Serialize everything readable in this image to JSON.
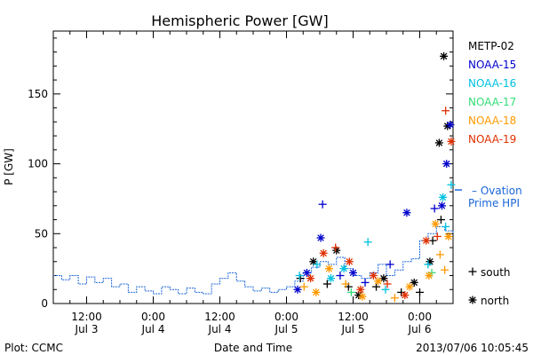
{
  "chart_data": {
    "type": "scatter",
    "title": "Hemispheric Power [GW]",
    "xlabel": "Date and Time",
    "ylabel": "P [GW]",
    "ylim": [
      0,
      195
    ],
    "xlim": [
      "2013-07-03 06:00",
      "2013-07-06 06:00"
    ],
    "x_ticks": [
      {
        "t": "2013-07-03 12:00",
        "top": "12:00",
        "bottom": "Jul 3"
      },
      {
        "t": "2013-07-04 00:00",
        "top": "0:00",
        "bottom": "Jul 4"
      },
      {
        "t": "2013-07-04 12:00",
        "top": "12:00",
        "bottom": "Jul 4"
      },
      {
        "t": "2013-07-05 00:00",
        "top": "0:00",
        "bottom": "Jul 5"
      },
      {
        "t": "2013-07-05 12:00",
        "top": "12:00",
        "bottom": "Jul 5"
      },
      {
        "t": "2013-07-06 00:00",
        "top": "0:00",
        "bottom": "Jul 6"
      }
    ],
    "y_ticks": [
      0,
      50,
      100,
      150
    ],
    "legend_position": "right",
    "series": [
      {
        "name": "METP-02",
        "color": "#000000",
        "points": [
          {
            "t": "2013-07-05 02:30",
            "y": 18,
            "m": "+"
          },
          {
            "t": "2013-07-05 04:50",
            "y": 30,
            "m": "*"
          },
          {
            "t": "2013-07-05 07:20",
            "y": 14,
            "m": "+"
          },
          {
            "t": "2013-07-05 09:00",
            "y": 38,
            "m": "*"
          },
          {
            "t": "2013-07-05 11:10",
            "y": 12,
            "m": "+"
          },
          {
            "t": "2013-07-05 13:00",
            "y": 6,
            "m": "*"
          },
          {
            "t": "2013-07-05 16:10",
            "y": 12,
            "m": "+"
          },
          {
            "t": "2013-07-05 17:30",
            "y": 18,
            "m": "*"
          },
          {
            "t": "2013-07-05 20:40",
            "y": 8,
            "m": "+"
          },
          {
            "t": "2013-07-05 23:00",
            "y": 15,
            "m": "*"
          },
          {
            "t": "2013-07-06 00:00",
            "y": 8,
            "m": "+"
          },
          {
            "t": "2013-07-06 01:50",
            "y": 30,
            "m": "*"
          },
          {
            "t": "2013-07-06 03:30",
            "y": 115,
            "m": "*"
          },
          {
            "t": "2013-07-06 04:20",
            "y": 177,
            "m": "*"
          },
          {
            "t": "2013-07-06 05:00",
            "y": 127,
            "m": "*"
          },
          {
            "t": "2013-07-06 02:20",
            "y": 45,
            "m": "+"
          },
          {
            "t": "2013-07-06 03:50",
            "y": 60,
            "m": "+"
          }
        ]
      },
      {
        "name": "NOAA-15",
        "color": "#0000cc",
        "points": [
          {
            "t": "2013-07-05 02:00",
            "y": 10,
            "m": "*"
          },
          {
            "t": "2013-07-05 03:40",
            "y": 22,
            "m": "*"
          },
          {
            "t": "2013-07-05 06:10",
            "y": 47,
            "m": "*"
          },
          {
            "t": "2013-07-05 06:30",
            "y": 71,
            "m": "+"
          },
          {
            "t": "2013-07-05 09:40",
            "y": 20,
            "m": "+"
          },
          {
            "t": "2013-07-05 12:00",
            "y": 22,
            "m": "*"
          },
          {
            "t": "2013-07-05 14:10",
            "y": 15,
            "m": "+"
          },
          {
            "t": "2013-07-05 18:40",
            "y": 28,
            "m": "+"
          },
          {
            "t": "2013-07-05 21:40",
            "y": 65,
            "m": "*"
          },
          {
            "t": "2013-07-06 02:40",
            "y": 68,
            "m": "+"
          },
          {
            "t": "2013-07-06 04:00",
            "y": 70,
            "m": "*"
          },
          {
            "t": "2013-07-06 04:50",
            "y": 100,
            "m": "*"
          },
          {
            "t": "2013-07-06 05:30",
            "y": 128,
            "m": "*"
          }
        ]
      },
      {
        "name": "NOAA-16",
        "color": "#00c0e0",
        "points": [
          {
            "t": "2013-07-05 02:20",
            "y": 20,
            "m": "+"
          },
          {
            "t": "2013-07-05 05:30",
            "y": 28,
            "m": "+"
          },
          {
            "t": "2013-07-05 08:00",
            "y": 18,
            "m": "*"
          },
          {
            "t": "2013-07-05 10:20",
            "y": 25,
            "m": "*"
          },
          {
            "t": "2013-07-05 14:40",
            "y": 44,
            "m": "+"
          },
          {
            "t": "2013-07-05 17:50",
            "y": 10,
            "m": "+"
          },
          {
            "t": "2013-07-06 01:30",
            "y": 28,
            "m": "+"
          },
          {
            "t": "2013-07-06 04:10",
            "y": 76,
            "m": "*"
          },
          {
            "t": "2013-07-06 04:40",
            "y": 55,
            "m": "+"
          },
          {
            "t": "2013-07-06 05:40",
            "y": 85,
            "m": "+"
          }
        ]
      },
      {
        "name": "NOAA-17",
        "color": "#33dd77",
        "points": [
          {
            "t": "2013-07-05 11:40",
            "y": 8,
            "m": "+"
          },
          {
            "t": "2013-07-06 02:10",
            "y": 22,
            "m": "+"
          }
        ]
      },
      {
        "name": "NOAA-18",
        "color": "#ff9900",
        "points": [
          {
            "t": "2013-07-05 03:10",
            "y": 12,
            "m": "+"
          },
          {
            "t": "2013-07-05 05:20",
            "y": 8,
            "m": "*"
          },
          {
            "t": "2013-07-05 07:40",
            "y": 25,
            "m": "*"
          },
          {
            "t": "2013-07-05 10:40",
            "y": 14,
            "m": "+"
          },
          {
            "t": "2013-07-05 13:40",
            "y": 5,
            "m": "*"
          },
          {
            "t": "2013-07-05 16:30",
            "y": 16,
            "m": "*"
          },
          {
            "t": "2013-07-05 19:30",
            "y": 4,
            "m": "+"
          },
          {
            "t": "2013-07-05 22:10",
            "y": 12,
            "m": "*"
          },
          {
            "t": "2013-07-06 01:40",
            "y": 20,
            "m": "*"
          },
          {
            "t": "2013-07-06 02:50",
            "y": 57,
            "m": "*"
          },
          {
            "t": "2013-07-06 03:40",
            "y": 35,
            "m": "+"
          },
          {
            "t": "2013-07-06 04:30",
            "y": 24,
            "m": "+"
          },
          {
            "t": "2013-07-06 05:10",
            "y": 48,
            "m": "*"
          }
        ]
      },
      {
        "name": "NOAA-19",
        "color": "#e03000",
        "points": [
          {
            "t": "2013-07-05 04:20",
            "y": 18,
            "m": "*"
          },
          {
            "t": "2013-07-05 06:40",
            "y": 36,
            "m": "*"
          },
          {
            "t": "2013-07-05 08:50",
            "y": 40,
            "m": "+"
          },
          {
            "t": "2013-07-05 11:20",
            "y": 30,
            "m": "*"
          },
          {
            "t": "2013-07-05 13:20",
            "y": 10,
            "m": "*"
          },
          {
            "t": "2013-07-05 15:40",
            "y": 20,
            "m": "*"
          },
          {
            "t": "2013-07-05 18:10",
            "y": 14,
            "m": "+"
          },
          {
            "t": "2013-07-05 21:20",
            "y": 6,
            "m": "*"
          },
          {
            "t": "2013-07-06 01:10",
            "y": 45,
            "m": "*"
          },
          {
            "t": "2013-07-06 03:10",
            "y": 48,
            "m": "+"
          },
          {
            "t": "2013-07-06 04:40",
            "y": 138,
            "m": "+"
          },
          {
            "t": "2013-07-06 05:40",
            "y": 116,
            "m": "*"
          }
        ]
      }
    ],
    "ovation_series": {
      "name": "Ovation Prime HPI",
      "label_line1": "Ovation",
      "label_line2": "Prime HPI",
      "color": "#1a66d9",
      "points": [
        {
          "t": "2013-07-03 06:00",
          "y": 20
        },
        {
          "t": "2013-07-03 07:30",
          "y": 17
        },
        {
          "t": "2013-07-03 09:00",
          "y": 20
        },
        {
          "t": "2013-07-03 10:30",
          "y": 14
        },
        {
          "t": "2013-07-03 12:00",
          "y": 19
        },
        {
          "t": "2013-07-03 13:30",
          "y": 15
        },
        {
          "t": "2013-07-03 15:00",
          "y": 18
        },
        {
          "t": "2013-07-03 16:30",
          "y": 12
        },
        {
          "t": "2013-07-03 18:00",
          "y": 14
        },
        {
          "t": "2013-07-03 19:30",
          "y": 8
        },
        {
          "t": "2013-07-03 21:00",
          "y": 12
        },
        {
          "t": "2013-07-03 22:30",
          "y": 9
        },
        {
          "t": "2013-07-04 00:00",
          "y": 7
        },
        {
          "t": "2013-07-04 01:30",
          "y": 12
        },
        {
          "t": "2013-07-04 03:00",
          "y": 10
        },
        {
          "t": "2013-07-04 04:30",
          "y": 7
        },
        {
          "t": "2013-07-04 06:00",
          "y": 11
        },
        {
          "t": "2013-07-04 07:30",
          "y": 8
        },
        {
          "t": "2013-07-04 09:00",
          "y": 7
        },
        {
          "t": "2013-07-04 10:30",
          "y": 14
        },
        {
          "t": "2013-07-04 12:00",
          "y": 18
        },
        {
          "t": "2013-07-04 13:30",
          "y": 22
        },
        {
          "t": "2013-07-04 15:00",
          "y": 16
        },
        {
          "t": "2013-07-04 16:30",
          "y": 12
        },
        {
          "t": "2013-07-04 18:00",
          "y": 9
        },
        {
          "t": "2013-07-04 19:30",
          "y": 11
        },
        {
          "t": "2013-07-04 21:00",
          "y": 8
        },
        {
          "t": "2013-07-04 22:30",
          "y": 10
        },
        {
          "t": "2013-07-05 00:00",
          "y": 12
        },
        {
          "t": "2013-07-05 01:30",
          "y": 16
        },
        {
          "t": "2013-07-05 03:00",
          "y": 22
        },
        {
          "t": "2013-07-05 04:30",
          "y": 26
        },
        {
          "t": "2013-07-05 06:00",
          "y": 30
        },
        {
          "t": "2013-07-05 07:30",
          "y": 28
        },
        {
          "t": "2013-07-05 09:00",
          "y": 33
        },
        {
          "t": "2013-07-05 10:30",
          "y": 25
        },
        {
          "t": "2013-07-05 12:00",
          "y": 20
        },
        {
          "t": "2013-07-05 13:30",
          "y": 18
        },
        {
          "t": "2013-07-05 15:00",
          "y": 22
        },
        {
          "t": "2013-07-05 16:30",
          "y": 28
        },
        {
          "t": "2013-07-05 18:00",
          "y": 20
        },
        {
          "t": "2013-07-05 19:30",
          "y": 24
        },
        {
          "t": "2013-07-05 21:00",
          "y": 30
        },
        {
          "t": "2013-07-05 22:30",
          "y": 32
        },
        {
          "t": "2013-07-06 00:00",
          "y": 45
        },
        {
          "t": "2013-07-06 01:30",
          "y": 50
        },
        {
          "t": "2013-07-06 03:00",
          "y": 55
        },
        {
          "t": "2013-07-06 04:30",
          "y": 52
        },
        {
          "t": "2013-07-06 06:00",
          "y": 50
        }
      ]
    },
    "marker_key": [
      {
        "symbol": "+",
        "label": "south"
      },
      {
        "symbol": "*",
        "label": "north"
      }
    ]
  },
  "footer": {
    "source": "Plot: CCMC",
    "timestamp": "2013/07/06 10:05:45"
  }
}
